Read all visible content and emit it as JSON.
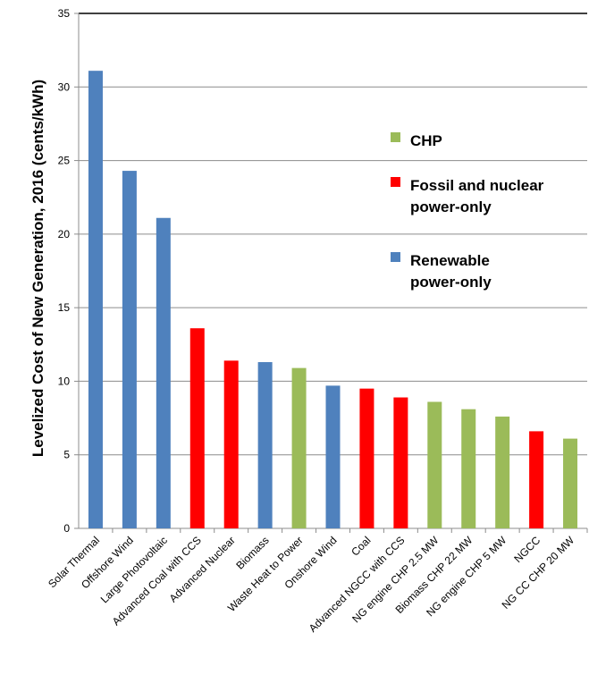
{
  "chart_data": {
    "type": "bar",
    "title": "",
    "xlabel": "",
    "ylabel": "Levelized Cost of New Generation, 2016 (cents/kWh)",
    "ylim": [
      0,
      35
    ],
    "yticks": [
      0,
      5,
      10,
      15,
      20,
      25,
      30,
      35
    ],
    "grid": true,
    "legend_position": "top-right",
    "categories": [
      "Solar Thermal",
      "Offshore Wind",
      "Large Photovoltaic",
      "Advanced Coal with CCS",
      "Advanced Nuclear",
      "Biomass",
      "Waste Heat to Power",
      "Onshore Wind",
      "Coal",
      "Advanced NGCC with CCS",
      "NG engine CHP 2.5 MW",
      "Biomass CHP 22 MW",
      "NG engine CHP 5 MW",
      "NGCC",
      "NG CC CHP 20 MW"
    ],
    "values": [
      31.1,
      24.3,
      21.1,
      13.6,
      11.4,
      11.3,
      10.9,
      9.7,
      9.5,
      8.9,
      8.6,
      8.1,
      7.6,
      6.6,
      6.1
    ],
    "groups": [
      "renewable",
      "renewable",
      "renewable",
      "fossil",
      "fossil",
      "renewable",
      "chp",
      "renewable",
      "fossil",
      "fossil",
      "chp",
      "chp",
      "chp",
      "fossil",
      "chp"
    ],
    "legend": [
      {
        "key": "chp",
        "label_lines": [
          "CHP"
        ],
        "color": "#9BBB59"
      },
      {
        "key": "fossil",
        "label_lines": [
          "Fossil and nuclear",
          "power-only"
        ],
        "color": "#FF0000"
      },
      {
        "key": "renewable",
        "label_lines": [
          "Renewable",
          "power-only"
        ],
        "color": "#4F81BD"
      }
    ]
  }
}
